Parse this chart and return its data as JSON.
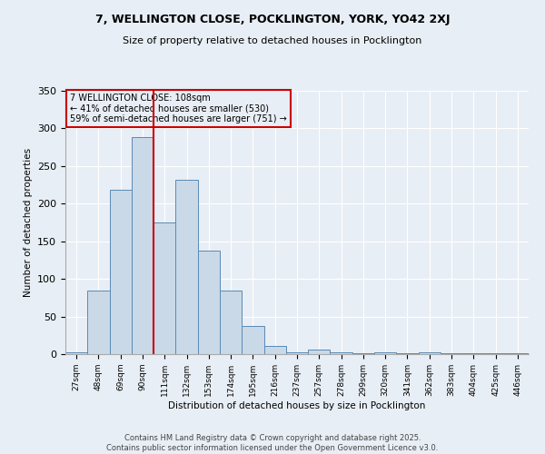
{
  "title_line1": "7, WELLINGTON CLOSE, POCKLINGTON, YORK, YO42 2XJ",
  "title_line2": "Size of property relative to detached houses in Pocklington",
  "xlabel": "Distribution of detached houses by size in Pocklington",
  "ylabel": "Number of detached properties",
  "categories": [
    "27sqm",
    "48sqm",
    "69sqm",
    "90sqm",
    "111sqm",
    "132sqm",
    "153sqm",
    "174sqm",
    "195sqm",
    "216sqm",
    "237sqm",
    "257sqm",
    "278sqm",
    "299sqm",
    "320sqm",
    "341sqm",
    "362sqm",
    "383sqm",
    "404sqm",
    "425sqm",
    "446sqm"
  ],
  "values": [
    2,
    85,
    218,
    288,
    175,
    232,
    138,
    85,
    38,
    11,
    2,
    6,
    2,
    1,
    2,
    1,
    2,
    1,
    1,
    1,
    1
  ],
  "bar_color": "#c9d9e8",
  "bar_edge_color": "#5a8ab5",
  "vline_x": 3.5,
  "vline_color": "#cc0000",
  "annotation_title": "7 WELLINGTON CLOSE: 108sqm",
  "annotation_line2": "← 41% of detached houses are smaller (530)",
  "annotation_line3": "59% of semi-detached houses are larger (751) →",
  "annotation_box_color": "#cc0000",
  "ylim": [
    0,
    350
  ],
  "background_color": "#e8eef5",
  "footer_line1": "Contains HM Land Registry data © Crown copyright and database right 2025.",
  "footer_line2": "Contains public sector information licensed under the Open Government Licence v3.0."
}
